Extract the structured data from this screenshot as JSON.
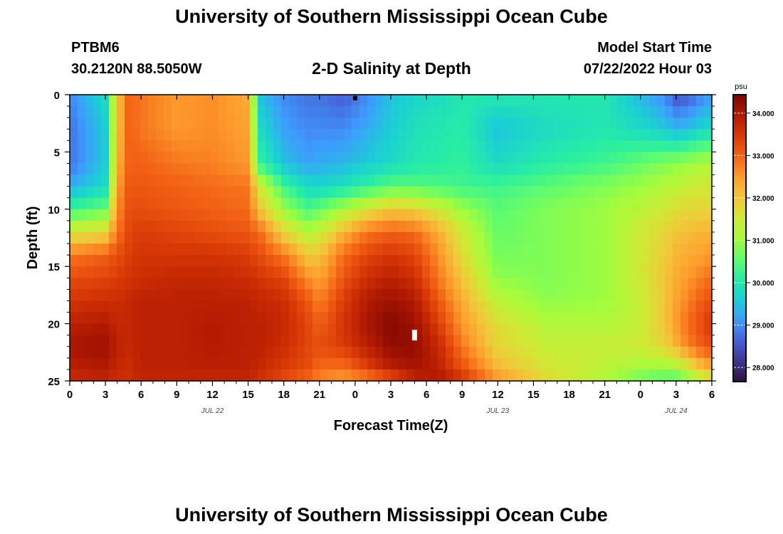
{
  "header": {
    "title": "University of Southern Mississippi Ocean Cube",
    "station": "PTBM6",
    "coords": "30.2120N  88.5050W",
    "plot_title": "2-D Salinity at Depth",
    "start_label": "Model Start Time",
    "start_value": "07/22/2022 Hour 03"
  },
  "footer": {
    "title": "University of Southern Mississippi Ocean Cube"
  },
  "chart_data": {
    "type": "heatmap",
    "title": "2-D Salinity at Depth",
    "xlabel": "Forecast Time(Z)",
    "ylabel": "Depth (ft)",
    "x_tick_labels": [
      "0",
      "3",
      "6",
      "9",
      "12",
      "15",
      "18",
      "21",
      "0",
      "3",
      "6",
      "9",
      "12",
      "15",
      "18",
      "21",
      "0",
      "3",
      "6"
    ],
    "x_range_hours": [
      0,
      54
    ],
    "date_labels": [
      {
        "hour": 12,
        "label": "JUL 22"
      },
      {
        "hour": 36,
        "label": "JUL 23"
      },
      {
        "hour": 51,
        "label": "JUL 24"
      }
    ],
    "y_ticks": [
      0,
      5,
      10,
      15,
      20,
      25
    ],
    "ylim": [
      25,
      0
    ],
    "colorbar": {
      "unit": "psu",
      "range": [
        27.7,
        34.4
      ],
      "ticks": [
        "28.000",
        "29.000",
        "30.000",
        "31.000",
        "32.000",
        "33.000",
        "34.000"
      ],
      "tick_values": [
        28,
        29,
        30,
        31,
        32,
        33,
        34
      ]
    },
    "colormap": [
      "#30123b",
      "#3e378f",
      "#4662d7",
      "#3e9bfe",
      "#1bcfd4",
      "#25eca7",
      "#61fc6c",
      "#a4fc3c",
      "#d1e834",
      "#f3c63a",
      "#fe9b2d",
      "#f36315",
      "#d93806",
      "#b11901",
      "#7a0403"
    ],
    "depth_nodes_ft": [
      0,
      3,
      6,
      8,
      10,
      12,
      14,
      16,
      18,
      20,
      22,
      24,
      25
    ],
    "time_nodes_hours": [
      0,
      3,
      4,
      5,
      6,
      9,
      12,
      15,
      16,
      18,
      20,
      21,
      23,
      25,
      27,
      29,
      31,
      33,
      36,
      40,
      45,
      48,
      50,
      51,
      52,
      53,
      54
    ],
    "salinity_psu": [
      [
        29.0,
        29.8,
        32.0,
        33.0,
        32.8,
        32.5,
        32.6,
        32.3,
        29.5,
        29.0,
        28.8,
        28.8,
        28.6,
        29.0,
        29.5,
        29.7,
        29.8,
        30.0,
        30.0,
        30.0,
        30.0,
        29.4,
        29.0,
        28.5,
        28.6,
        28.9,
        29.2
      ],
      [
        28.8,
        29.6,
        32.0,
        33.0,
        32.8,
        32.5,
        32.6,
        32.4,
        29.8,
        29.2,
        29.0,
        29.0,
        29.0,
        29.3,
        29.6,
        29.9,
        30.0,
        30.1,
        29.5,
        29.8,
        30.0,
        29.8,
        29.6,
        29.4,
        29.5,
        29.7,
        29.8
      ],
      [
        28.8,
        29.6,
        32.2,
        33.0,
        33.0,
        32.8,
        32.7,
        32.5,
        30.2,
        29.5,
        29.2,
        29.3,
        29.4,
        29.6,
        29.8,
        30.0,
        30.1,
        30.2,
        29.8,
        30.1,
        30.3,
        30.6,
        30.8,
        30.9,
        31.0,
        31.1,
        31.2
      ],
      [
        29.3,
        29.8,
        32.4,
        33.1,
        33.1,
        33.0,
        32.9,
        32.8,
        31.5,
        30.3,
        29.8,
        29.7,
        29.9,
        30.2,
        30.5,
        30.5,
        30.4,
        30.3,
        30.3,
        30.5,
        30.8,
        31.0,
        31.2,
        31.3,
        31.4,
        31.5,
        31.5
      ],
      [
        30.3,
        30.6,
        32.6,
        33.2,
        33.2,
        33.1,
        33.0,
        32.9,
        32.0,
        31.0,
        30.4,
        30.6,
        31.1,
        31.6,
        32.0,
        31.9,
        31.5,
        31.0,
        30.5,
        30.8,
        31.0,
        31.3,
        31.5,
        31.7,
        31.8,
        31.8,
        31.8
      ],
      [
        31.5,
        31.8,
        32.8,
        33.3,
        33.4,
        33.3,
        33.2,
        33.1,
        32.9,
        31.8,
        31.2,
        31.4,
        32.2,
        32.8,
        33.0,
        32.9,
        32.3,
        31.5,
        30.6,
        30.8,
        31.0,
        31.5,
        31.8,
        32.0,
        32.1,
        32.2,
        32.2
      ],
      [
        32.8,
        33.0,
        33.2,
        33.4,
        33.5,
        33.5,
        33.5,
        33.4,
        33.2,
        32.8,
        32.0,
        32.0,
        32.9,
        33.3,
        33.5,
        33.3,
        32.6,
        31.7,
        30.7,
        30.8,
        31.0,
        31.5,
        31.9,
        32.2,
        32.3,
        32.4,
        32.5
      ],
      [
        33.2,
        33.3,
        33.4,
        33.5,
        33.6,
        33.7,
        33.7,
        33.6,
        33.5,
        33.3,
        32.6,
        32.4,
        33.1,
        33.6,
        33.8,
        33.6,
        32.8,
        32.0,
        30.9,
        30.8,
        31.0,
        31.5,
        32.0,
        32.3,
        32.5,
        32.7,
        32.9
      ],
      [
        33.5,
        33.6,
        33.6,
        33.7,
        33.8,
        33.8,
        33.8,
        33.8,
        33.7,
        33.6,
        33.1,
        32.7,
        33.4,
        33.9,
        34.1,
        33.9,
        33.1,
        32.3,
        31.3,
        30.9,
        31.0,
        31.4,
        32.0,
        32.4,
        32.7,
        33.0,
        33.2
      ],
      [
        33.8,
        33.9,
        33.7,
        33.7,
        33.8,
        33.8,
        33.9,
        33.8,
        33.8,
        33.7,
        33.3,
        33.0,
        33.5,
        34.0,
        34.3,
        34.1,
        33.4,
        32.5,
        31.7,
        31.2,
        31.2,
        31.4,
        32.0,
        32.5,
        32.9,
        33.2,
        33.5
      ],
      [
        34.0,
        34.1,
        33.8,
        33.7,
        33.8,
        33.8,
        33.9,
        33.8,
        33.8,
        33.6,
        33.3,
        33.2,
        33.4,
        33.8,
        34.2,
        34.2,
        33.7,
        32.8,
        31.8,
        31.4,
        31.4,
        31.5,
        31.8,
        32.2,
        32.7,
        33.0,
        33.2
      ],
      [
        33.8,
        33.9,
        33.7,
        33.6,
        33.8,
        33.8,
        33.8,
        33.8,
        33.7,
        33.4,
        33.2,
        32.9,
        32.8,
        33.3,
        33.8,
        34.0,
        33.8,
        33.2,
        32.2,
        31.6,
        31.3,
        31.0,
        30.9,
        31.0,
        31.4,
        31.9,
        32.3
      ],
      [
        33.6,
        33.7,
        33.6,
        33.6,
        33.7,
        33.7,
        33.7,
        33.7,
        33.5,
        33.2,
        32.9,
        32.6,
        32.4,
        32.6,
        33.0,
        33.7,
        34.0,
        33.6,
        32.6,
        31.8,
        31.1,
        30.6,
        30.4,
        30.4,
        30.7,
        31.1,
        31.3
      ]
    ],
    "markers": [
      {
        "hour": 24,
        "depth_ft": 0.3,
        "color": "#000000"
      },
      {
        "hour": 29,
        "depth_ft": 21,
        "color": "#ffffff"
      }
    ]
  }
}
